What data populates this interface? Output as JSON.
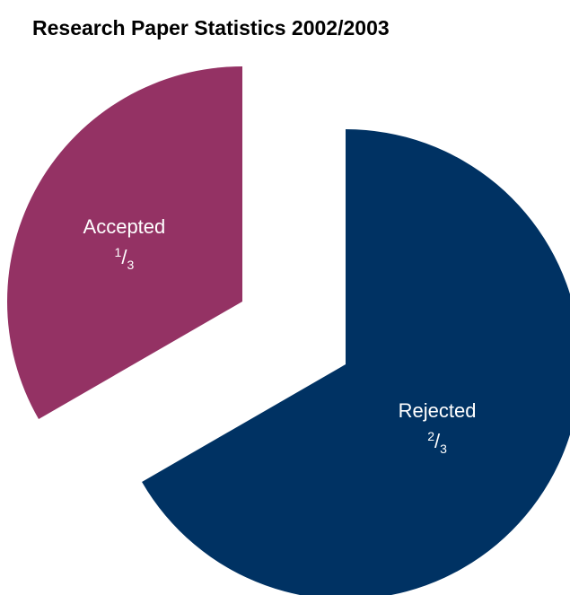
{
  "chart_data": {
    "type": "pie",
    "title": "Research Paper Statistics 2002/2003",
    "slices": [
      {
        "label": "Accepted",
        "fraction_label": {
          "num": "1",
          "den": "3"
        },
        "value": 0.3333,
        "color": "#943264",
        "exploded": true
      },
      {
        "label": "Rejected",
        "fraction_label": {
          "num": "2",
          "den": "3"
        },
        "value": 0.6667,
        "color": "#003263",
        "exploded": true
      }
    ]
  }
}
